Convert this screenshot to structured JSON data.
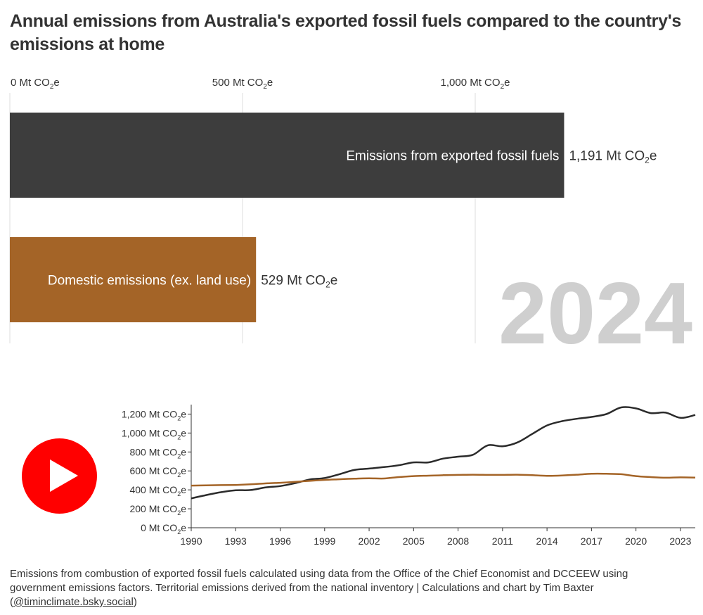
{
  "title": "Annual emissions from Australia's exported fossil fuels compared to the country's emissions at home",
  "unit": {
    "prefix": "Mt CO",
    "sub": "2",
    "suffix": "e"
  },
  "colors": {
    "exported": "#3d3d3d",
    "domestic": "#a46427",
    "year_text": "#cfcfcf",
    "play": "#ff0000"
  },
  "icons": {
    "play": "play-icon"
  },
  "chart_data": [
    {
      "type": "bar",
      "orientation": "horizontal",
      "year_label": "2024",
      "axis_ticks": [
        {
          "value": 0,
          "label": "0"
        },
        {
          "value": 500,
          "label": "500"
        },
        {
          "value": 1000,
          "label": "1,000"
        }
      ],
      "xlim": [
        0,
        1500
      ],
      "bars": [
        {
          "name": "Emissions from exported fossil fuels",
          "value": 1191,
          "value_label": "1,191",
          "color": "#3d3d3d"
        },
        {
          "name": "Domestic emissions (ex. land use)",
          "value": 529,
          "value_label": "529",
          "color": "#a46427"
        }
      ]
    },
    {
      "type": "line",
      "x": [
        1990,
        1991,
        1992,
        1993,
        1994,
        1995,
        1996,
        1997,
        1998,
        1999,
        2000,
        2001,
        2002,
        2003,
        2004,
        2005,
        2006,
        2007,
        2008,
        2009,
        2010,
        2011,
        2012,
        2013,
        2014,
        2015,
        2016,
        2017,
        2018,
        2019,
        2020,
        2021,
        2022,
        2023,
        2024
      ],
      "xlim": [
        1990,
        2024
      ],
      "ylim": [
        0,
        1300
      ],
      "x_ticks": [
        "1990",
        "1993",
        "1996",
        "1999",
        "2002",
        "2005",
        "2008",
        "2011",
        "2014",
        "2017",
        "2020",
        "2023"
      ],
      "y_ticks": [
        {
          "value": 0,
          "label": "0"
        },
        {
          "value": 200,
          "label": "200"
        },
        {
          "value": 400,
          "label": "400"
        },
        {
          "value": 600,
          "label": "600"
        },
        {
          "value": 800,
          "label": "800"
        },
        {
          "value": 1000,
          "label": "1,000"
        },
        {
          "value": 1200,
          "label": "1,200"
        }
      ],
      "series": [
        {
          "values": [
            310,
            345,
            375,
            395,
            398,
            425,
            440,
            470,
            510,
            525,
            565,
            610,
            625,
            640,
            660,
            690,
            690,
            730,
            750,
            770,
            870,
            860,
            900,
            990,
            1080,
            1125,
            1150,
            1170,
            1200,
            1270,
            1260,
            1210,
            1215,
            1160,
            1191
          ],
          "color": "#2b2b2b"
        },
        {
          "values": [
            445,
            448,
            450,
            452,
            458,
            468,
            475,
            485,
            495,
            505,
            512,
            518,
            522,
            520,
            535,
            545,
            550,
            555,
            558,
            560,
            558,
            558,
            560,
            555,
            548,
            552,
            560,
            570,
            570,
            565,
            545,
            535,
            528,
            532,
            529
          ],
          "color": "#a46427"
        }
      ]
    }
  ],
  "footer": {
    "text": "Emissions from combustion of exported fossil fuels calculated using data from the Office of the Chief Economist and DCCEEW using government emissions factors. Territorial emissions derived from the national inventory | Calculations and chart by Tim Baxter (",
    "link": "@timinclimate.bsky.social",
    "close": ")"
  }
}
